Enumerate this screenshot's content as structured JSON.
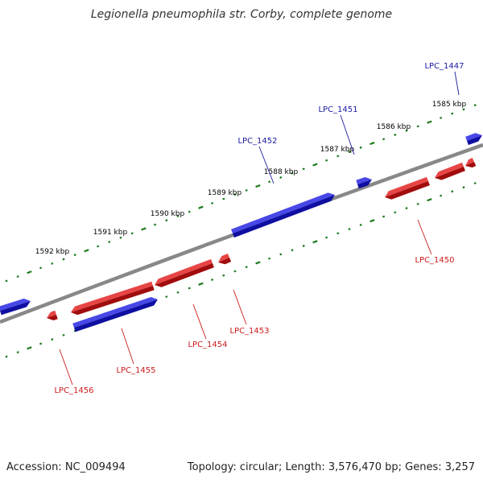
{
  "title": "Legionella pneumophila str. Corby, complete genome",
  "footer": {
    "accession": "Accession: NC_009494",
    "summary": "Topology: circular; Length: 3,576,470 bp; Genes: 3,257"
  },
  "colors": {
    "backbone": "#888888",
    "forward_gene": "#1515e0",
    "reverse_gene": "#e01010",
    "ticks": "#1a7a1a",
    "forward_label": "#1a1aa0",
    "reverse_label": "#cc1a1a"
  },
  "tick_labels": [
    "1585 kbp",
    "1586 kbp",
    "1587 kbp",
    "1588 kbp",
    "1589 kbp",
    "1590 kbp",
    "1591 kbp",
    "1592 kbp"
  ],
  "genes": [
    {
      "name": "LPC_1447",
      "strand": "+"
    },
    {
      "name": "LPC_1451",
      "strand": "+"
    },
    {
      "name": "LPC_1452",
      "strand": "+"
    },
    {
      "name": "LPC_1450",
      "strand": "-"
    },
    {
      "name": "LPC_1453",
      "strand": "-"
    },
    {
      "name": "LPC_1454",
      "strand": "-"
    },
    {
      "name": "LPC_1455",
      "strand": "-"
    },
    {
      "name": "LPC_1456",
      "strand": "-"
    }
  ]
}
